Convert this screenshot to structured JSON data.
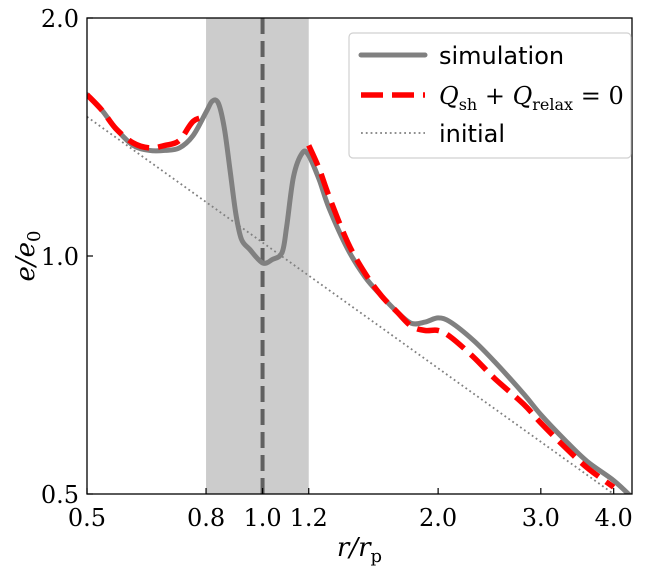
{
  "chart_data": {
    "type": "line",
    "title": "",
    "xlabel": "r/r_p",
    "ylabel": "e/e_0",
    "xscale": "log",
    "yscale": "log",
    "xlim": [
      0.5,
      4.3
    ],
    "ylim": [
      0.5,
      2.0
    ],
    "xticks": [
      0.5,
      0.8,
      1.0,
      1.2,
      2.0,
      3.0,
      4.0
    ],
    "xtick_labels": [
      "0.5",
      "0.8",
      "1.0",
      "1.2",
      "2.0",
      "3.0",
      "4.0"
    ],
    "yticks": [
      0.5,
      1.0,
      2.0
    ],
    "ytick_labels": [
      "0.5",
      "1.0",
      "2.0"
    ],
    "shaded_region": [
      0.8,
      1.2
    ],
    "vertical_line": 1.0,
    "legend_position": "top-right",
    "series": [
      {
        "name": "simulation",
        "style": "solid",
        "color": "#808080",
        "x": [
          0.5,
          0.53,
          0.56,
          0.6,
          0.64,
          0.68,
          0.72,
          0.76,
          0.8,
          0.82,
          0.84,
          0.86,
          0.88,
          0.9,
          0.92,
          0.95,
          1.0,
          1.04,
          1.08,
          1.1,
          1.13,
          1.17,
          1.2,
          1.25,
          1.3,
          1.4,
          1.5,
          1.6,
          1.7,
          1.8,
          1.9,
          2.0,
          2.1,
          2.3,
          2.5,
          2.8,
          3.0,
          3.3,
          3.6,
          4.0,
          4.3
        ],
        "y": [
          1.6,
          1.53,
          1.45,
          1.38,
          1.36,
          1.36,
          1.37,
          1.42,
          1.52,
          1.57,
          1.56,
          1.45,
          1.28,
          1.13,
          1.05,
          1.02,
          0.98,
          0.99,
          1.01,
          1.09,
          1.26,
          1.35,
          1.34,
          1.25,
          1.15,
          1.02,
          0.94,
          0.89,
          0.85,
          0.822,
          0.825,
          0.835,
          0.825,
          0.782,
          0.735,
          0.67,
          0.63,
          0.585,
          0.55,
          0.52,
          0.495
        ]
      },
      {
        "name": "Q_sh + Q_relax = 0",
        "style": "dashed",
        "color": "#ff0000",
        "segments": [
          {
            "x": [
              0.5,
              0.53,
              0.56,
              0.6,
              0.64,
              0.68,
              0.72,
              0.76,
              0.8
            ],
            "y": [
              1.6,
              1.53,
              1.45,
              1.39,
              1.37,
              1.38,
              1.4,
              1.48,
              1.5
            ]
          },
          {
            "x": [
              1.2,
              1.25,
              1.3,
              1.4,
              1.5,
              1.6,
              1.7,
              1.8,
              1.9,
              2.0,
              2.1,
              2.3,
              2.5,
              2.8,
              3.0,
              3.3,
              3.6,
              4.0
            ],
            "y": [
              1.38,
              1.29,
              1.19,
              1.04,
              0.95,
              0.89,
              0.85,
              0.815,
              0.805,
              0.805,
              0.79,
              0.745,
              0.7,
              0.65,
              0.615,
              0.573,
              0.54,
              0.51
            ]
          }
        ]
      },
      {
        "name": "initial",
        "style": "dotted",
        "color": "#808080",
        "x": [
          0.5,
          4.0
        ],
        "y": [
          1.5,
          0.5
        ]
      }
    ],
    "legend": [
      {
        "label": "simulation",
        "style": "solid",
        "color": "#808080"
      },
      {
        "label": "Q_sh + Q_relax = 0",
        "style": "dashed",
        "color": "#ff0000"
      },
      {
        "label": "initial",
        "style": "dotted",
        "color": "#808080"
      }
    ]
  }
}
